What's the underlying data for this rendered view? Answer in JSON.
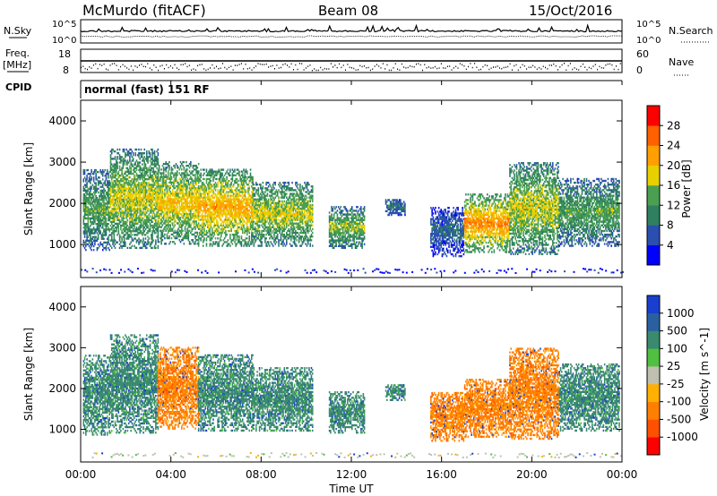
{
  "header": {
    "station": "McMurdo (fitACF)",
    "beam": "Beam 08",
    "date": "15/Oct/2016"
  },
  "noise_panel": {
    "left_label": "N.Sky",
    "right_label": "N.Search",
    "left_ticks": [
      "10^5",
      "10^0"
    ],
    "right_ticks": [
      "10^5",
      "10^0"
    ]
  },
  "freq_panel": {
    "left_label_line1": "Freq.",
    "left_label_line2": "[MHz]",
    "left_ticks": [
      "18",
      "8"
    ],
    "right_label": "Nave",
    "right_ticks": [
      "60",
      "0"
    ]
  },
  "cpid_panel": {
    "label": "CPID",
    "text": "normal (fast) 151 RF"
  },
  "colors": {
    "power_scale": [
      "#0000ff",
      "#2a4fb0",
      "#2f8060",
      "#4aa050",
      "#e8d000",
      "#ffa000",
      "#ff6000",
      "#ff0000"
    ],
    "velocity_scale": [
      "#1a3fd0",
      "#2a60a0",
      "#3a8a70",
      "#50c040",
      "#c0c0b0",
      "#ffb000",
      "#ff8000",
      "#ff5000",
      "#ff0000"
    ]
  },
  "chart_data": [
    {
      "type": "heatmap",
      "ylabel": "Slant Range [km]",
      "yticks": [
        "4000",
        "3000",
        "2000",
        "1000"
      ],
      "ylim": [
        200,
        4500
      ],
      "xlim": [
        0,
        24
      ],
      "colorbar_label": "Power [dB]",
      "colorbar_ticks": [
        "28",
        "24",
        "20",
        "16",
        "12",
        "8",
        "4"
      ],
      "colorbar_range": [
        0,
        32
      ],
      "echo_regions": [
        {
          "t0": 0.1,
          "t1": 1.3,
          "r0": 850,
          "r1": 2800,
          "level": 14
        },
        {
          "t0": 1.3,
          "t1": 3.4,
          "r0": 900,
          "r1": 3300,
          "level": 18
        },
        {
          "t0": 3.4,
          "t1": 5.2,
          "r0": 1000,
          "r1": 3000,
          "level": 20
        },
        {
          "t0": 5.2,
          "t1": 7.6,
          "r0": 950,
          "r1": 2800,
          "level": 22
        },
        {
          "t0": 7.6,
          "t1": 10.3,
          "r0": 950,
          "r1": 2500,
          "level": 18
        },
        {
          "t0": 11.0,
          "t1": 12.6,
          "r0": 900,
          "r1": 1900,
          "level": 16
        },
        {
          "t0": 13.5,
          "t1": 14.4,
          "r0": 1700,
          "r1": 2100,
          "level": 10
        },
        {
          "t0": 15.5,
          "t1": 17.0,
          "r0": 700,
          "r1": 1900,
          "level": 8
        },
        {
          "t0": 17.0,
          "t1": 19.0,
          "r0": 800,
          "r1": 2200,
          "level": 24
        },
        {
          "t0": 19.0,
          "t1": 21.2,
          "r0": 750,
          "r1": 3000,
          "level": 18
        },
        {
          "t0": 21.2,
          "t1": 23.9,
          "r0": 950,
          "r1": 2600,
          "level": 14
        }
      ]
    },
    {
      "type": "heatmap",
      "ylabel": "Slant Range [km]",
      "yticks": [
        "4000",
        "3000",
        "2000",
        "1000"
      ],
      "ylim": [
        200,
        4500
      ],
      "xlim": [
        0,
        24
      ],
      "xlabel": "Time UT",
      "xticks": [
        "00:00",
        "04:00",
        "08:00",
        "12:00",
        "16:00",
        "20:00",
        "00:00"
      ],
      "colorbar_label": "Velocity [m s^-1]",
      "colorbar_ticks": [
        "1000",
        "500",
        "100",
        "25",
        "-25",
        "-100",
        "-500",
        "-1000"
      ],
      "echo_regions": [
        {
          "t0": 0.1,
          "t1": 1.3,
          "r0": 850,
          "r1": 2800,
          "velocity": 100
        },
        {
          "t0": 1.3,
          "t1": 3.4,
          "r0": 900,
          "r1": 3300,
          "velocity": 100
        },
        {
          "t0": 3.4,
          "t1": 5.2,
          "r0": 1000,
          "r1": 3000,
          "velocity": -100
        },
        {
          "t0": 5.2,
          "t1": 7.6,
          "r0": 950,
          "r1": 2800,
          "velocity": 100
        },
        {
          "t0": 7.6,
          "t1": 10.3,
          "r0": 950,
          "r1": 2500,
          "velocity": 100
        },
        {
          "t0": 11.0,
          "t1": 12.6,
          "r0": 900,
          "r1": 1900,
          "velocity": 100
        },
        {
          "t0": 13.5,
          "t1": 14.4,
          "r0": 1700,
          "r1": 2100,
          "velocity": 100
        },
        {
          "t0": 15.5,
          "t1": 17.0,
          "r0": 700,
          "r1": 1900,
          "velocity": -100
        },
        {
          "t0": 17.0,
          "t1": 19.0,
          "r0": 800,
          "r1": 2200,
          "velocity": -100
        },
        {
          "t0": 19.0,
          "t1": 21.2,
          "r0": 750,
          "r1": 3000,
          "velocity": -100
        },
        {
          "t0": 21.2,
          "t1": 23.9,
          "r0": 950,
          "r1": 2600,
          "velocity": 100
        }
      ]
    }
  ]
}
